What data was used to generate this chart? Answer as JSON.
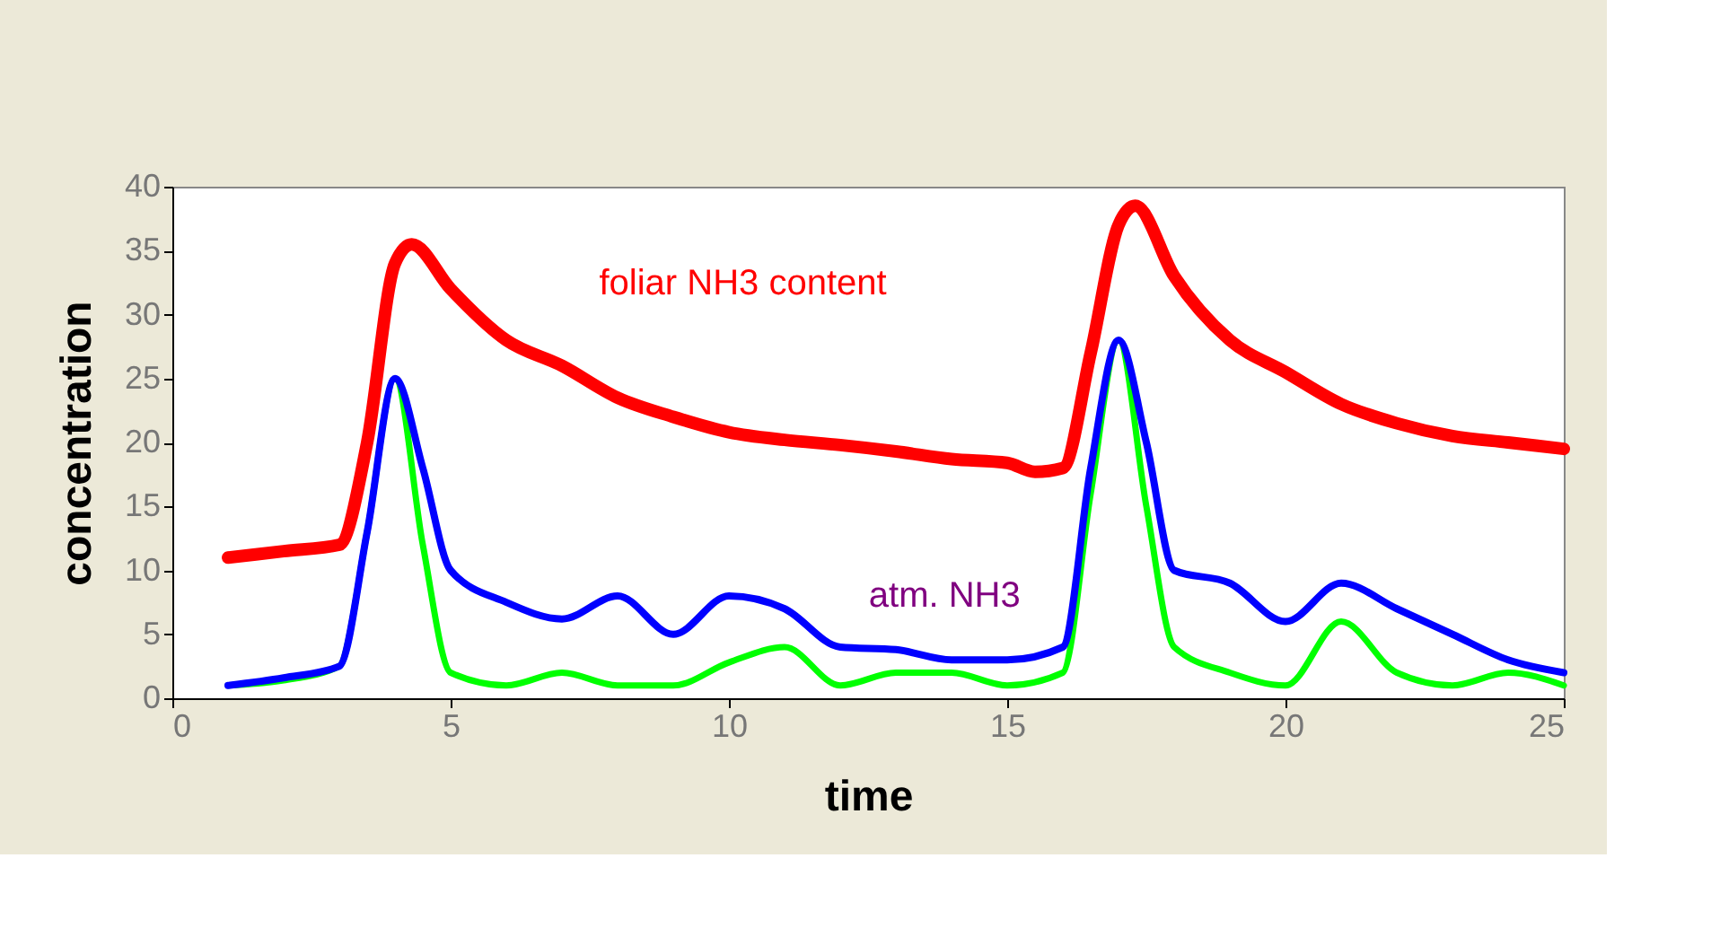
{
  "chart_data": {
    "type": "line",
    "xlabel": "time",
    "ylabel": "concentration",
    "xlim": [
      0,
      25
    ],
    "xticks": [
      0,
      5,
      10,
      15,
      20,
      25
    ],
    "ylim": [
      0,
      40
    ],
    "yticks": [
      0,
      5,
      10,
      15,
      20,
      25,
      30,
      35,
      40
    ],
    "grid": false,
    "marker": "none",
    "line_style": "solid",
    "annotations": [
      "foliar NH3 content",
      "atm. NH3"
    ],
    "series": [
      {
        "color": "#ff0000",
        "x": [
          1,
          2,
          3,
          3.5,
          4,
          4.3,
          5,
          6,
          7,
          8,
          9,
          10,
          11,
          12,
          13,
          14,
          15,
          15.5,
          16,
          16.5,
          17,
          17.3,
          18,
          19,
          20,
          21,
          22,
          23,
          24,
          25
        ],
        "values": [
          11,
          11.5,
          12,
          20,
          34,
          35.5,
          32,
          28,
          26,
          23.5,
          22,
          20.8,
          20.2,
          19.8,
          19.3,
          18.7,
          18.4,
          17.7,
          18,
          27,
          37,
          38.5,
          33,
          28,
          25.5,
          23,
          21.5,
          20.5,
          20,
          19.5
        ]
      },
      {
        "color": "#00ff00",
        "x": [
          1,
          2,
          3,
          3.5,
          4,
          4.5,
          5,
          6,
          7,
          8,
          9,
          10,
          11,
          12,
          13,
          14,
          15,
          16,
          16.5,
          17,
          17.5,
          18,
          19,
          20,
          21,
          22,
          23,
          24,
          25
        ],
        "values": [
          1,
          1.4,
          2.5,
          13,
          25,
          12,
          2,
          1,
          2,
          1,
          1,
          2.8,
          4,
          1,
          2,
          2,
          1,
          2,
          16,
          28,
          15,
          4,
          2,
          1,
          6,
          2,
          1,
          2,
          1
        ]
      },
      {
        "color": "#0000ff",
        "x": [
          1,
          2,
          3,
          3.5,
          4,
          4.5,
          5,
          6,
          7,
          8,
          9,
          10,
          11,
          12,
          13,
          14,
          15,
          16,
          16.5,
          17,
          17.5,
          18,
          19,
          20,
          21,
          22,
          23,
          24,
          25
        ],
        "values": [
          1,
          1.6,
          2.5,
          13,
          25,
          18,
          10,
          7.5,
          6.2,
          8,
          5,
          8,
          7,
          4,
          3.8,
          3,
          3,
          4,
          18,
          28,
          20,
          10,
          9,
          6,
          9,
          7,
          5,
          3,
          2
        ]
      }
    ]
  }
}
